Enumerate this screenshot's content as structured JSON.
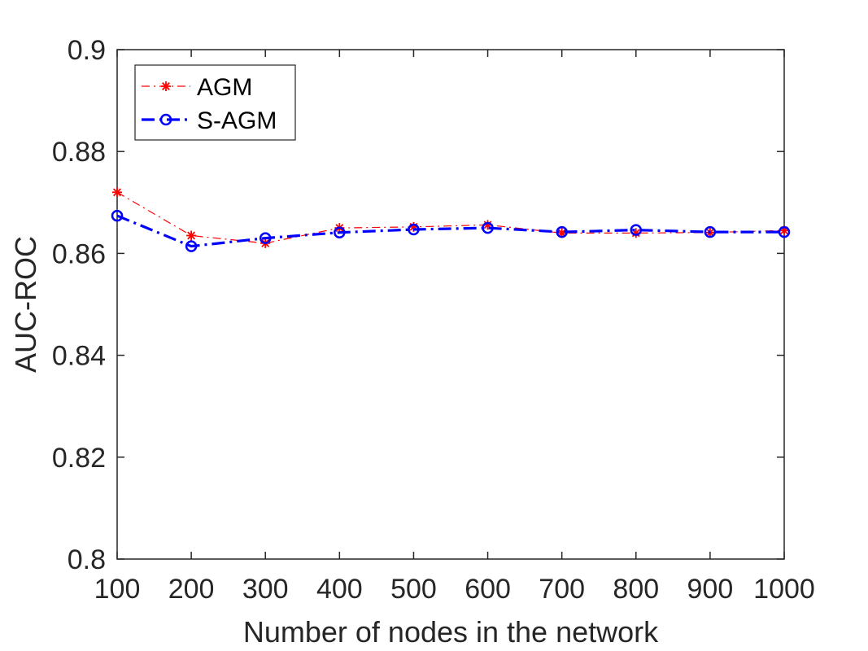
{
  "chart_data": {
    "type": "line",
    "title": "",
    "xlabel": "Number of nodes in the network",
    "ylabel": "AUC-ROC",
    "x": [
      100,
      200,
      300,
      400,
      500,
      600,
      700,
      800,
      900,
      1000
    ],
    "x_ticks": [
      "100",
      "200",
      "300",
      "400",
      "500",
      "600",
      "700",
      "800",
      "900",
      "1000"
    ],
    "y_ticks": [
      "0.8",
      "0.82",
      "0.84",
      "0.86",
      "0.88",
      "0.9"
    ],
    "xlim": [
      100,
      1000
    ],
    "ylim": [
      0.8,
      0.9
    ],
    "grid": false,
    "legend_position": "top-left",
    "series": [
      {
        "name": "AGM",
        "marker": "asterisk",
        "line_style": "dash-dot",
        "color": "#ff0000",
        "values": [
          0.872,
          0.8635,
          0.862,
          0.865,
          0.8652,
          0.8656,
          0.864,
          0.864,
          0.8641,
          0.8645
        ]
      },
      {
        "name": "S-AGM",
        "marker": "circle",
        "line_style": "dash-dot",
        "color": "#0000ff",
        "values": [
          0.8674,
          0.8614,
          0.863,
          0.8641,
          0.8647,
          0.865,
          0.8642,
          0.8646,
          0.8642,
          0.8642
        ]
      }
    ]
  }
}
